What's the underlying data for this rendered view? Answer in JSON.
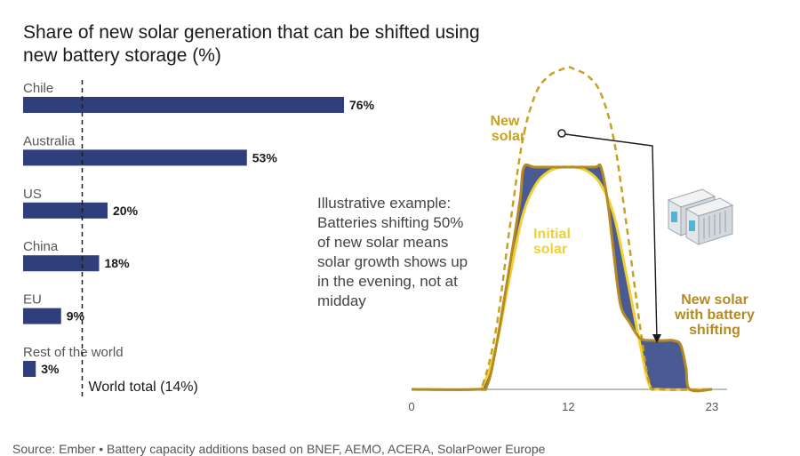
{
  "title_lines": [
    "Share of new solar generation that can be shifted using",
    "new battery storage (%)"
  ],
  "illustration": {
    "text_lines": [
      "Illustrative example:",
      "Batteries shifting 50%",
      "of new solar means",
      "solar growth shows up",
      "in the evening, not at",
      "midday"
    ],
    "label_new_solar": [
      "New",
      "solar"
    ],
    "label_initial_solar": [
      "Initial",
      "solar"
    ],
    "label_shifted": [
      "New solar",
      "with battery",
      "shifting"
    ],
    "x_ticks": [
      "0",
      "12",
      "23"
    ],
    "icon": "battery-storage-icon"
  },
  "source": "Source: Ember • Battery capacity additions based on BNEF, AEMO, ACERA, SolarPower Europe",
  "colors": {
    "bar": "#2e3f7c",
    "initial_solar": "#f2d032",
    "new_solar": "#c9a020",
    "shifted_curve": "#b68a22",
    "shaded": "#4a5a93",
    "axis": "#aaaaaa",
    "text": "#1a1a1a"
  },
  "chart_data": [
    {
      "type": "bar",
      "orientation": "horizontal",
      "categories": [
        "Chile",
        "Australia",
        "US",
        "China",
        "EU",
        "Rest of the world"
      ],
      "values": [
        76,
        53,
        20,
        18,
        9,
        3
      ],
      "value_labels": [
        "76%",
        "53%",
        "20%",
        "18%",
        "9%",
        "3%"
      ],
      "xlim": [
        0,
        80
      ],
      "reference_line": {
        "value": 14,
        "label": "World total (14%)"
      }
    },
    {
      "type": "line",
      "x_ticks": [
        0,
        12,
        23
      ],
      "xlim": [
        0,
        23
      ],
      "series": [
        {
          "name": "Initial solar",
          "x": [
            0,
            4.8,
            5.5,
            6.5,
            7.5,
            8.5,
            9.5,
            10.5,
            11.5,
            12,
            12.5,
            13.5,
            14.5,
            15.5,
            16.5,
            17.5,
            18.2,
            19,
            23
          ],
          "y": [
            0,
            0,
            0.02,
            0.2,
            0.5,
            0.78,
            0.92,
            0.98,
            1.0,
            1.0,
            1.0,
            0.98,
            0.92,
            0.78,
            0.5,
            0.2,
            0.02,
            0,
            0
          ]
        },
        {
          "name": "New solar",
          "x": [
            0,
            4.8,
            5.5,
            6.5,
            7.5,
            8.5,
            9.5,
            10.5,
            11.5,
            12,
            12.5,
            13.5,
            14.5,
            15.5,
            16.5,
            17.5,
            18.2,
            19,
            23
          ],
          "y": [
            0,
            0,
            0.03,
            0.28,
            0.72,
            1.12,
            1.33,
            1.41,
            1.44,
            1.45,
            1.44,
            1.41,
            1.33,
            1.12,
            0.72,
            0.28,
            0.03,
            0,
            0
          ]
        },
        {
          "name": "New solar with battery shifting",
          "x": [
            0,
            5,
            5.8,
            6.5,
            7.5,
            8.3,
            8.6,
            9.5,
            12,
            14,
            14.5,
            15,
            15.5,
            16,
            16.7,
            17.5,
            18.5,
            19.5,
            20,
            20.6,
            21,
            21.3,
            23
          ],
          "y": [
            0,
            0,
            0.02,
            0.2,
            0.55,
            0.85,
            1.0,
            1.0,
            1.0,
            1.0,
            1.0,
            0.85,
            0.6,
            0.38,
            0.3,
            0.23,
            0.22,
            0.22,
            0.22,
            0.2,
            0.1,
            0,
            0
          ]
        }
      ]
    }
  ]
}
